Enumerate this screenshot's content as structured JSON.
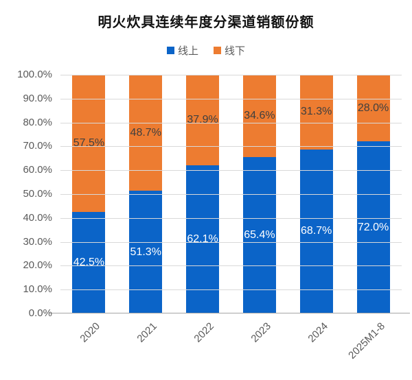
{
  "title": "明火炊具连续年度分渠道销额份额",
  "chart_data": {
    "type": "bar",
    "stacked": true,
    "title": "明火炊具连续年度分渠道销额份额",
    "categories": [
      "2020",
      "2021",
      "2022",
      "2023",
      "2024",
      "2025M1-8"
    ],
    "series": [
      {
        "name": "线上",
        "color": "#0B64C8",
        "label_color": "#FFFFFF",
        "values": [
          42.5,
          51.3,
          62.1,
          65.4,
          68.7,
          72.0
        ],
        "labels": [
          "42.5%",
          "51.3%",
          "62.1%",
          "65.4%",
          "68.7%",
          "72.0%"
        ]
      },
      {
        "name": "线下",
        "color": "#ED7C31",
        "label_color": "#3F3F3F",
        "values": [
          57.5,
          48.7,
          37.9,
          34.6,
          31.3,
          28.0
        ],
        "labels": [
          "57.5%",
          "48.7%",
          "37.9%",
          "34.6%",
          "31.3%",
          "28.0%"
        ]
      }
    ],
    "ylim": [
      0,
      100
    ],
    "yticks": [
      "0.0%",
      "10.0%",
      "20.0%",
      "30.0%",
      "40.0%",
      "50.0%",
      "60.0%",
      "70.0%",
      "80.0%",
      "90.0%",
      "100.0%"
    ],
    "grid": true,
    "legend_position": "top",
    "colors": {
      "grid": "#D9D9D9",
      "axis_line": "#A6A6A6",
      "tick_label": "#595959",
      "title": "#111111"
    }
  }
}
